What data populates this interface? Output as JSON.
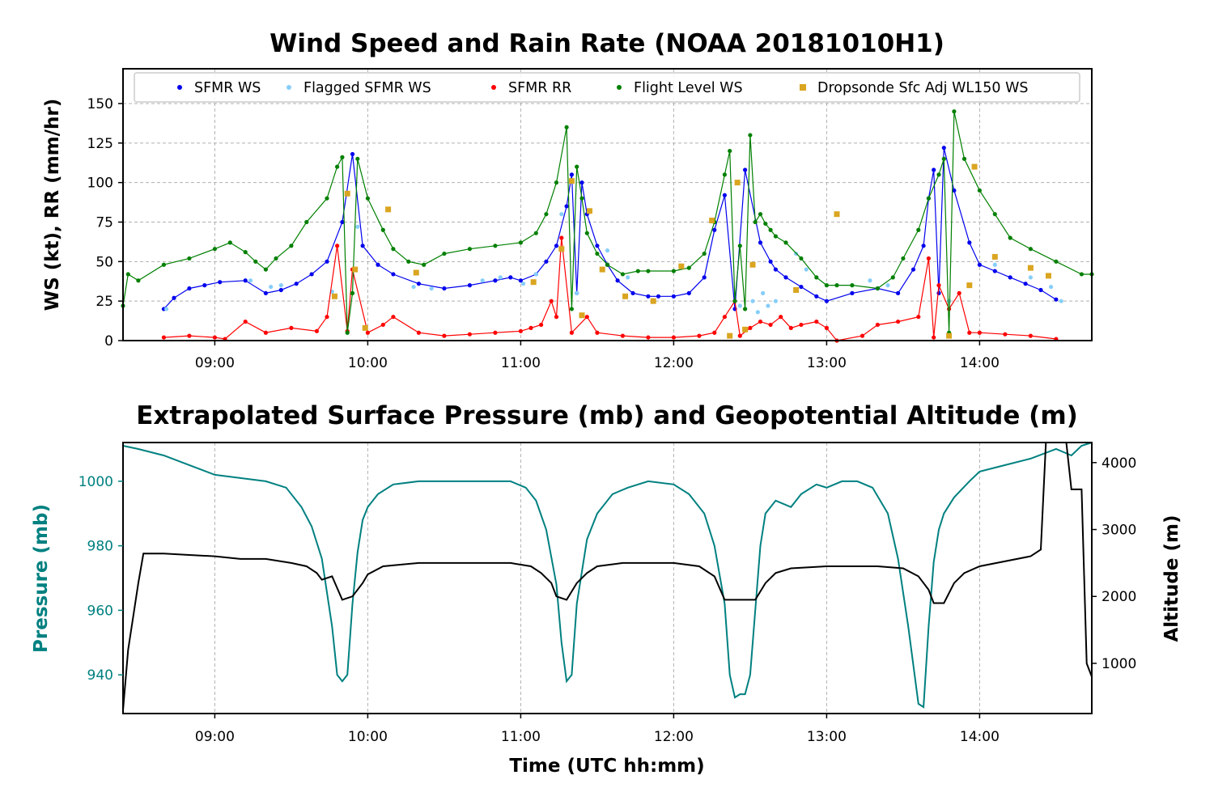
{
  "chart_data": [
    {
      "type": "line",
      "title": "Wind Speed and Rain Rate (NOAA 20181010H1)",
      "xlabel": "",
      "ylabel": "WS (kt), RR (mm/hr)",
      "xlim": [
        "08:24",
        "14:44"
      ],
      "ylim": [
        0,
        172
      ],
      "x_ticks": [
        "09:00",
        "10:00",
        "11:00",
        "12:00",
        "13:00",
        "14:00"
      ],
      "y_ticks": [
        0,
        25,
        50,
        75,
        100,
        125,
        150
      ],
      "grid": true,
      "legend_position": "top",
      "legend": [
        "SFMR WS",
        "Flagged SFMR WS",
        "SFMR RR",
        "Flight Level WS",
        "Dropsonde Sfc Adj WL150 WS"
      ],
      "colors": {
        "sfmr_ws": "#0000ee",
        "flagged_sfmr_ws": "#87cefa",
        "sfmr_rr": "#ff0000",
        "flight_level_ws": "#008000",
        "dropsonde": "#daa520"
      },
      "series": [
        {
          "name": "SFMR WS",
          "x": [
            "08:40",
            "08:44",
            "08:50",
            "08:56",
            "09:02",
            "09:12",
            "09:20",
            "09:26",
            "09:32",
            "09:38",
            "09:44",
            "09:50",
            "09:54",
            "09:58",
            "10:04",
            "10:10",
            "10:20",
            "10:30",
            "10:40",
            "10:50",
            "10:56",
            "11:00",
            "11:06",
            "11:10",
            "11:14",
            "11:18",
            "11:20",
            "11:22",
            "11:24",
            "11:26",
            "11:30",
            "11:34",
            "11:38",
            "11:44",
            "11:50",
            "11:54",
            "12:00",
            "12:06",
            "12:12",
            "12:16",
            "12:20",
            "12:24",
            "12:28",
            "12:34",
            "12:38",
            "12:40",
            "12:44",
            "12:50",
            "12:56",
            "13:00",
            "13:10",
            "13:20",
            "13:28",
            "13:34",
            "13:38",
            "13:40",
            "13:42",
            "13:44",
            "13:46",
            "13:50",
            "13:56",
            "14:00",
            "14:06",
            "14:12",
            "14:18",
            "14:24",
            "14:30"
          ],
          "y": [
            20,
            27,
            33,
            35,
            37,
            38,
            30,
            32,
            36,
            42,
            50,
            75,
            118,
            60,
            48,
            42,
            36,
            33,
            35,
            38,
            40,
            38,
            42,
            50,
            60,
            85,
            105,
            30,
            100,
            80,
            60,
            48,
            38,
            30,
            28,
            28,
            28,
            30,
            40,
            70,
            92,
            20,
            108,
            62,
            50,
            45,
            40,
            34,
            28,
            25,
            30,
            33,
            30,
            45,
            60,
            90,
            108,
            30,
            122,
            95,
            62,
            48,
            44,
            40,
            36,
            32,
            26
          ]
        },
        {
          "name": "Flagged SFMR WS",
          "x": [
            "08:41",
            "09:14",
            "09:22",
            "09:26",
            "09:46",
            "09:56",
            "10:18",
            "10:25",
            "10:45",
            "10:52",
            "11:01",
            "11:06",
            "11:16",
            "11:22",
            "11:34",
            "11:42",
            "12:26",
            "12:28",
            "12:31",
            "12:33",
            "12:35",
            "12:37",
            "12:40",
            "12:48",
            "12:52",
            "13:17",
            "13:24",
            "13:48",
            "14:06",
            "14:20",
            "14:28",
            "14:32"
          ],
          "y": [
            20,
            38,
            34,
            35,
            31,
            72,
            34,
            33,
            38,
            40,
            36,
            42,
            80,
            30,
            57,
            40,
            22,
            20,
            25,
            18,
            30,
            22,
            25,
            55,
            45,
            38,
            35,
            25,
            48,
            40,
            34,
            25
          ]
        },
        {
          "name": "SFMR RR",
          "x": [
            "08:40",
            "08:50",
            "09:00",
            "09:04",
            "09:12",
            "09:20",
            "09:30",
            "09:40",
            "09:44",
            "09:48",
            "09:52",
            "09:54",
            "10:00",
            "10:06",
            "10:10",
            "10:20",
            "10:30",
            "10:40",
            "10:50",
            "11:00",
            "11:04",
            "11:08",
            "11:12",
            "11:14",
            "11:16",
            "11:20",
            "11:26",
            "11:30",
            "11:40",
            "11:50",
            "12:00",
            "12:10",
            "12:16",
            "12:20",
            "12:24",
            "12:26",
            "12:30",
            "12:34",
            "12:38",
            "12:42",
            "12:46",
            "12:50",
            "12:56",
            "13:00",
            "13:04",
            "13:14",
            "13:20",
            "13:28",
            "13:36",
            "13:40",
            "13:42",
            "13:44",
            "13:48",
            "13:52",
            "13:56",
            "14:00",
            "14:10",
            "14:20",
            "14:30"
          ],
          "y": [
            2,
            3,
            2,
            1,
            12,
            5,
            8,
            6,
            15,
            60,
            6,
            45,
            5,
            10,
            15,
            5,
            3,
            4,
            5,
            6,
            8,
            10,
            25,
            15,
            65,
            5,
            15,
            5,
            3,
            2,
            2,
            3,
            5,
            15,
            25,
            3,
            8,
            12,
            10,
            15,
            8,
            10,
            12,
            8,
            0,
            3,
            10,
            12,
            15,
            52,
            2,
            35,
            20,
            30,
            5,
            5,
            4,
            3,
            1
          ]
        },
        {
          "name": "Flight Level WS",
          "x": [
            "08:24",
            "08:26",
            "08:30",
            "08:40",
            "08:50",
            "09:00",
            "09:06",
            "09:12",
            "09:16",
            "09:20",
            "09:24",
            "09:30",
            "09:36",
            "09:44",
            "09:48",
            "09:50",
            "09:52",
            "09:54",
            "09:56",
            "10:00",
            "10:06",
            "10:10",
            "10:16",
            "10:22",
            "10:30",
            "10:40",
            "10:50",
            "11:00",
            "11:06",
            "11:10",
            "11:14",
            "11:18",
            "11:20",
            "11:22",
            "11:24",
            "11:26",
            "11:30",
            "11:34",
            "11:40",
            "11:46",
            "11:50",
            "12:00",
            "12:06",
            "12:12",
            "12:16",
            "12:20",
            "12:22",
            "12:24",
            "12:26",
            "12:28",
            "12:30",
            "12:32",
            "12:34",
            "12:36",
            "12:38",
            "12:40",
            "12:44",
            "12:50",
            "12:56",
            "13:00",
            "13:04",
            "13:10",
            "13:20",
            "13:26",
            "13:30",
            "13:36",
            "13:40",
            "13:44",
            "13:46",
            "13:48",
            "13:50",
            "13:54",
            "14:00",
            "14:06",
            "14:12",
            "14:20",
            "14:30",
            "14:40",
            "14:44"
          ],
          "y": [
            22,
            42,
            38,
            48,
            52,
            58,
            62,
            56,
            50,
            45,
            52,
            60,
            75,
            90,
            110,
            116,
            5,
            30,
            115,
            90,
            70,
            58,
            50,
            48,
            55,
            58,
            60,
            62,
            68,
            80,
            100,
            135,
            20,
            110,
            90,
            68,
            55,
            48,
            42,
            44,
            44,
            44,
            46,
            55,
            75,
            105,
            120,
            25,
            60,
            20,
            130,
            75,
            80,
            74,
            70,
            66,
            62,
            52,
            40,
            35,
            35,
            35,
            33,
            40,
            52,
            70,
            90,
            105,
            115,
            5,
            145,
            115,
            95,
            80,
            65,
            58,
            50,
            42,
            42
          ]
        },
        {
          "name": "Dropsonde Sfc Adj WL150 WS",
          "x": [
            "09:47",
            "09:55",
            "09:52",
            "09:59",
            "10:08",
            "10:19",
            "11:05",
            "11:16",
            "11:20",
            "11:24",
            "11:27",
            "11:32",
            "11:41",
            "11:52",
            "12:03",
            "12:15",
            "12:22",
            "12:25",
            "12:28",
            "12:31",
            "12:48",
            "13:04",
            "13:48",
            "13:56",
            "13:58",
            "14:06",
            "14:20",
            "14:27"
          ],
          "y": [
            28,
            45,
            93,
            8,
            83,
            43,
            37,
            58,
            101,
            16,
            82,
            45,
            28,
            25,
            47,
            76,
            3,
            100,
            7,
            48,
            32,
            80,
            3,
            35,
            110,
            53,
            46,
            41
          ]
        }
      ]
    },
    {
      "type": "line",
      "title": "Extrapolated Surface Pressure (mb) and Geopotential Altitude (m)",
      "xlabel": "Time (UTC hh:mm)",
      "ylabel": "Pressure (mb)",
      "y2label": "Altitude (m)",
      "xlim": [
        "08:24",
        "14:44"
      ],
      "ylim": [
        928,
        1012
      ],
      "y2lim": [
        250,
        4300
      ],
      "x_ticks": [
        "09:00",
        "10:00",
        "11:00",
        "12:00",
        "13:00",
        "14:00"
      ],
      "y_ticks": [
        940,
        960,
        980,
        1000
      ],
      "y2_ticks": [
        1000,
        2000,
        3000,
        4000
      ],
      "grid": true,
      "colors": {
        "pressure": "#008080",
        "altitude": "#000000"
      },
      "series": [
        {
          "name": "Pressure",
          "axis": "left",
          "x": [
            "08:24",
            "08:30",
            "08:40",
            "08:50",
            "09:00",
            "09:10",
            "09:20",
            "09:28",
            "09:34",
            "09:38",
            "09:42",
            "09:46",
            "09:48",
            "09:50",
            "09:52",
            "09:54",
            "09:56",
            "09:58",
            "10:00",
            "10:04",
            "10:10",
            "10:20",
            "10:30",
            "10:40",
            "10:50",
            "10:56",
            "11:02",
            "11:06",
            "11:10",
            "11:14",
            "11:16",
            "11:18",
            "11:20",
            "11:22",
            "11:26",
            "11:30",
            "11:36",
            "11:42",
            "11:50",
            "12:00",
            "12:06",
            "12:12",
            "12:16",
            "12:20",
            "12:22",
            "12:24",
            "12:26",
            "12:28",
            "12:30",
            "12:32",
            "12:34",
            "12:36",
            "12:40",
            "12:46",
            "12:50",
            "12:56",
            "13:00",
            "13:06",
            "13:12",
            "13:18",
            "13:24",
            "13:28",
            "13:32",
            "13:36",
            "13:38",
            "13:40",
            "13:42",
            "13:44",
            "13:46",
            "13:50",
            "13:56",
            "14:00",
            "14:10",
            "14:20",
            "14:30",
            "14:36",
            "14:40",
            "14:44"
          ],
          "y": [
            1011,
            1010,
            1008,
            1005,
            1002,
            1001,
            1000,
            998,
            992,
            986,
            976,
            955,
            940,
            938,
            940,
            962,
            978,
            988,
            992,
            996,
            999,
            1000,
            1000,
            1000,
            1000,
            1000,
            998,
            994,
            985,
            968,
            950,
            938,
            940,
            962,
            982,
            990,
            996,
            998,
            1000,
            999,
            996,
            990,
            980,
            962,
            940,
            933,
            934,
            934,
            940,
            960,
            980,
            990,
            994,
            992,
            996,
            999,
            998,
            1000,
            1000,
            998,
            990,
            976,
            955,
            931,
            930,
            955,
            975,
            985,
            990,
            995,
            1000,
            1003,
            1005,
            1007,
            1010,
            1008,
            1011,
            1012
          ]
        },
        {
          "name": "Altitude",
          "axis": "right",
          "x": [
            "08:24",
            "08:26",
            "08:30",
            "08:32",
            "08:40",
            "08:50",
            "09:00",
            "09:10",
            "09:20",
            "09:30",
            "09:36",
            "09:40",
            "09:42",
            "09:46",
            "09:50",
            "09:54",
            "09:58",
            "10:00",
            "10:06",
            "10:20",
            "10:40",
            "10:50",
            "10:56",
            "11:04",
            "11:08",
            "11:12",
            "11:14",
            "11:18",
            "11:22",
            "11:26",
            "11:30",
            "11:40",
            "12:00",
            "12:10",
            "12:16",
            "12:20",
            "12:24",
            "12:28",
            "12:32",
            "12:36",
            "12:40",
            "12:46",
            "13:00",
            "13:20",
            "13:30",
            "13:36",
            "13:40",
            "13:42",
            "13:46",
            "13:50",
            "13:54",
            "14:00",
            "14:20",
            "14:24",
            "14:26",
            "14:30",
            "14:34",
            "14:36",
            "14:40",
            "14:42",
            "14:44"
          ],
          "y": [
            300,
            1200,
            2200,
            2640,
            2640,
            2620,
            2600,
            2560,
            2560,
            2500,
            2450,
            2350,
            2250,
            2300,
            1950,
            2000,
            2200,
            2330,
            2450,
            2500,
            2500,
            2500,
            2500,
            2450,
            2350,
            2200,
            2000,
            1950,
            2200,
            2350,
            2450,
            2500,
            2500,
            2450,
            2300,
            1950,
            1950,
            1950,
            1950,
            2200,
            2350,
            2420,
            2450,
            2450,
            2420,
            2300,
            2100,
            1900,
            1900,
            2200,
            2350,
            2450,
            2600,
            2700,
            4300,
            4300,
            4300,
            3600,
            3600,
            1000,
            800
          ]
        }
      ]
    }
  ]
}
